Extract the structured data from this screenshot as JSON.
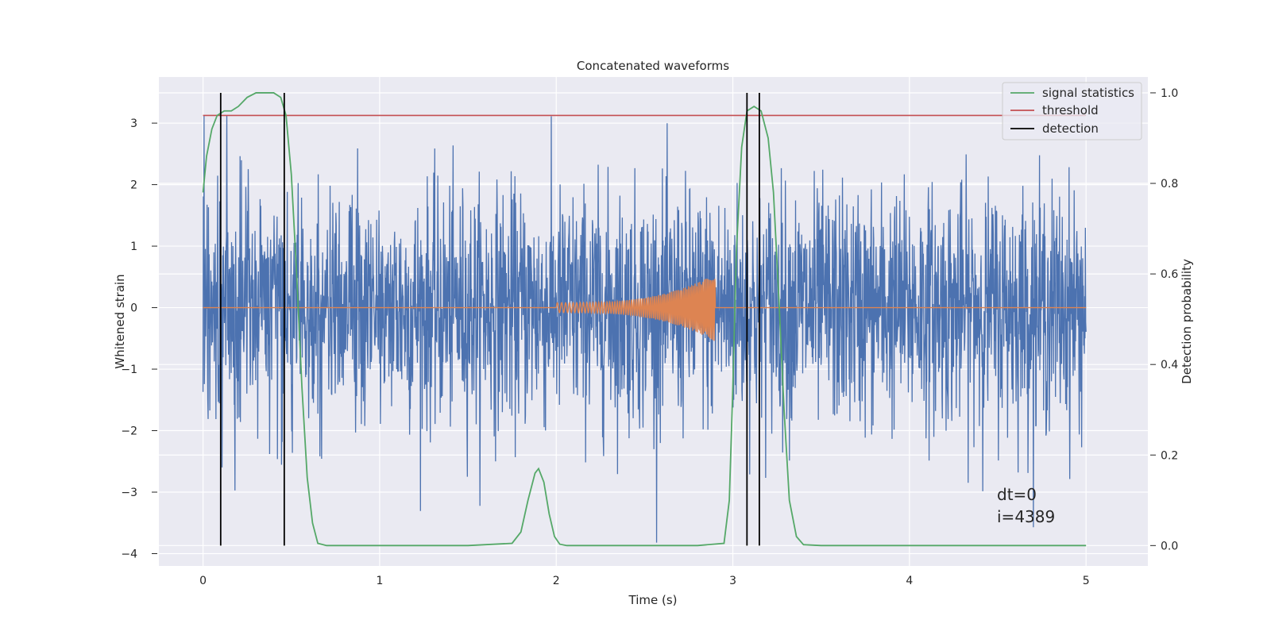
{
  "chart_data": {
    "type": "line",
    "title": "Concatenated waveforms",
    "xlabel": "Time (s)",
    "ylabel_left": "Whitened strain",
    "ylabel_right": "Detection probability",
    "xlim": [
      -0.25,
      5.35
    ],
    "ylim_left": [
      -4.2,
      3.75
    ],
    "ylim_right": [
      -0.045,
      1.035
    ],
    "x_ticks": [
      0,
      1,
      2,
      3,
      4,
      5
    ],
    "x_tick_labels": [
      "0",
      "1",
      "2",
      "3",
      "4",
      "5"
    ],
    "y_left_ticks": [
      -4,
      -3,
      -2,
      -1,
      0,
      1,
      2,
      3
    ],
    "y_left_tick_labels": [
      "−4",
      "−3",
      "−2",
      "−1",
      "0",
      "1",
      "2",
      "3"
    ],
    "y_right_ticks": [
      0.0,
      0.2,
      0.4,
      0.6,
      0.8,
      1.0
    ],
    "y_right_tick_labels": [
      "0.0",
      "0.2",
      "0.4",
      "0.6",
      "0.8",
      "1.0"
    ],
    "grid": true,
    "legend_position": "top-right",
    "annotations": [
      "dt=0",
      "i=4389"
    ],
    "noise": {
      "name": "whitened strain",
      "axis": "left",
      "color": "#4c72b0",
      "x_range": [
        0,
        5
      ],
      "typical_range": [
        -2.5,
        2.6
      ],
      "min": -3.85,
      "max": 3.4
    },
    "injected_signal": {
      "axis": "left",
      "color": "#dd8452",
      "x_range": [
        0,
        5
      ],
      "chirp_start": 2.0,
      "chirp_end": 2.9,
      "amplitude_start": 0.08,
      "amplitude_end": 0.55
    },
    "series": [
      {
        "name": "signal statistics",
        "axis": "right",
        "color": "#55a868",
        "x": [
          0.0,
          0.02,
          0.05,
          0.08,
          0.12,
          0.16,
          0.2,
          0.25,
          0.3,
          0.35,
          0.4,
          0.44,
          0.47,
          0.5,
          0.53,
          0.56,
          0.59,
          0.62,
          0.65,
          0.7,
          1.0,
          1.5,
          1.75,
          1.8,
          1.84,
          1.88,
          1.9,
          1.93,
          1.96,
          1.99,
          2.02,
          2.06,
          2.2,
          2.5,
          2.8,
          2.95,
          2.98,
          3.0,
          3.02,
          3.05,
          3.08,
          3.12,
          3.16,
          3.2,
          3.23,
          3.26,
          3.29,
          3.32,
          3.36,
          3.4,
          3.5,
          4.0,
          4.5,
          5.0
        ],
        "y": [
          0.78,
          0.86,
          0.92,
          0.95,
          0.96,
          0.96,
          0.97,
          0.99,
          1.0,
          1.0,
          1.0,
          0.99,
          0.95,
          0.82,
          0.6,
          0.35,
          0.15,
          0.05,
          0.005,
          0.0,
          0.0,
          0.0,
          0.005,
          0.03,
          0.1,
          0.16,
          0.17,
          0.14,
          0.07,
          0.02,
          0.003,
          0.0,
          0.0,
          0.0,
          0.0,
          0.005,
          0.1,
          0.35,
          0.65,
          0.88,
          0.96,
          0.97,
          0.96,
          0.9,
          0.78,
          0.55,
          0.3,
          0.1,
          0.02,
          0.002,
          0.0,
          0.0,
          0.0,
          0.0
        ]
      },
      {
        "name": "threshold",
        "axis": "right",
        "color": "#c44e52",
        "x": [
          0,
          5
        ],
        "y": [
          0.95,
          0.95
        ]
      },
      {
        "name": "detection",
        "axis": "right",
        "color": "#000000",
        "x": [
          0.1,
          0.46,
          3.08,
          3.15
        ],
        "y_range": [
          0.0,
          1.0
        ]
      }
    ]
  }
}
